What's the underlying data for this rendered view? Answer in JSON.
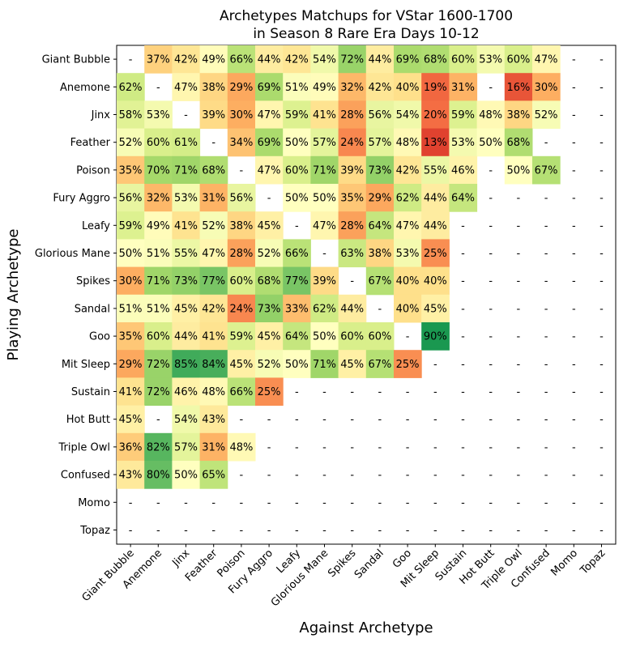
{
  "chart_data": {
    "type": "heatmap",
    "title": "Archetypes Matchups for VStar 1600-1700",
    "subtitle": "in Season 8 Rare Era Days 10-12",
    "xlabel": "Against Archetype",
    "ylabel": "Playing Archetype",
    "rows": [
      "Giant Bubble",
      "Anemone",
      "Jinx",
      "Feather",
      "Poison",
      "Fury Aggro",
      "Leafy",
      "Glorious Mane",
      "Spikes",
      "Sandal",
      "Goo",
      "Mit Sleep",
      "Sustain",
      "Hot Butt",
      "Triple Owl",
      "Confused",
      "Momo",
      "Topaz"
    ],
    "columns": [
      "Giant Bubble",
      "Anemone",
      "Jinx",
      "Feather",
      "Poison",
      "Fury Aggro",
      "Leafy",
      "Glorious Mane",
      "Spikes",
      "Sandal",
      "Goo",
      "Mit Sleep",
      "Sustain",
      "Hot Butt",
      "Triple Owl",
      "Confused",
      "Momo",
      "Topaz"
    ],
    "values": [
      [
        null,
        37,
        42,
        49,
        66,
        44,
        42,
        54,
        72,
        44,
        69,
        68,
        60,
        53,
        60,
        47,
        null,
        null
      ],
      [
        62,
        null,
        47,
        38,
        29,
        69,
        51,
        49,
        32,
        42,
        40,
        19,
        31,
        null,
        16,
        30,
        null,
        null
      ],
      [
        58,
        53,
        null,
        39,
        30,
        47,
        59,
        41,
        28,
        56,
        54,
        20,
        59,
        48,
        38,
        52,
        null,
        null
      ],
      [
        52,
        60,
        61,
        null,
        34,
        69,
        50,
        57,
        24,
        57,
        48,
        13,
        53,
        50,
        68,
        null,
        null,
        null
      ],
      [
        35,
        70,
        71,
        68,
        null,
        47,
        60,
        71,
        39,
        73,
        42,
        55,
        46,
        null,
        50,
        67,
        null,
        null
      ],
      [
        56,
        32,
        53,
        31,
        56,
        null,
        50,
        50,
        35,
        29,
        62,
        44,
        64,
        null,
        null,
        null,
        null,
        null
      ],
      [
        59,
        49,
        41,
        52,
        38,
        45,
        null,
        47,
        28,
        64,
        47,
        44,
        null,
        null,
        null,
        null,
        null,
        null
      ],
      [
        50,
        51,
        55,
        47,
        28,
        52,
        66,
        null,
        63,
        38,
        53,
        25,
        null,
        null,
        null,
        null,
        null,
        null
      ],
      [
        30,
        71,
        73,
        77,
        60,
        68,
        77,
        39,
        null,
        67,
        40,
        40,
        null,
        null,
        null,
        null,
        null,
        null
      ],
      [
        51,
        51,
        45,
        42,
        24,
        73,
        33,
        62,
        44,
        null,
        40,
        45,
        null,
        null,
        null,
        null,
        null,
        null
      ],
      [
        35,
        60,
        44,
        41,
        59,
        45,
        64,
        50,
        60,
        60,
        null,
        90,
        null,
        null,
        null,
        null,
        null,
        null
      ],
      [
        29,
        72,
        85,
        84,
        45,
        52,
        50,
        71,
        45,
        67,
        25,
        null,
        null,
        null,
        null,
        null,
        null,
        null
      ],
      [
        41,
        72,
        46,
        48,
        66,
        25,
        null,
        null,
        null,
        null,
        null,
        null,
        null,
        null,
        null,
        null,
        null,
        null
      ],
      [
        45,
        null,
        54,
        43,
        null,
        null,
        null,
        null,
        null,
        null,
        null,
        null,
        null,
        null,
        null,
        null,
        null,
        null
      ],
      [
        36,
        82,
        57,
        31,
        48,
        null,
        null,
        null,
        null,
        null,
        null,
        null,
        null,
        null,
        null,
        null,
        null,
        null
      ],
      [
        43,
        80,
        50,
        65,
        null,
        null,
        null,
        null,
        null,
        null,
        null,
        null,
        null,
        null,
        null,
        null,
        null,
        null
      ],
      [
        null,
        null,
        null,
        null,
        null,
        null,
        null,
        null,
        null,
        null,
        null,
        null,
        null,
        null,
        null,
        null,
        null,
        null
      ],
      [
        null,
        null,
        null,
        null,
        null,
        null,
        null,
        null,
        null,
        null,
        null,
        null,
        null,
        null,
        null,
        null,
        null,
        null
      ]
    ],
    "value_format": "{v}%",
    "missing_label": "-",
    "color_scale": "RdYlGn",
    "color_range": [
      0,
      100
    ]
  }
}
